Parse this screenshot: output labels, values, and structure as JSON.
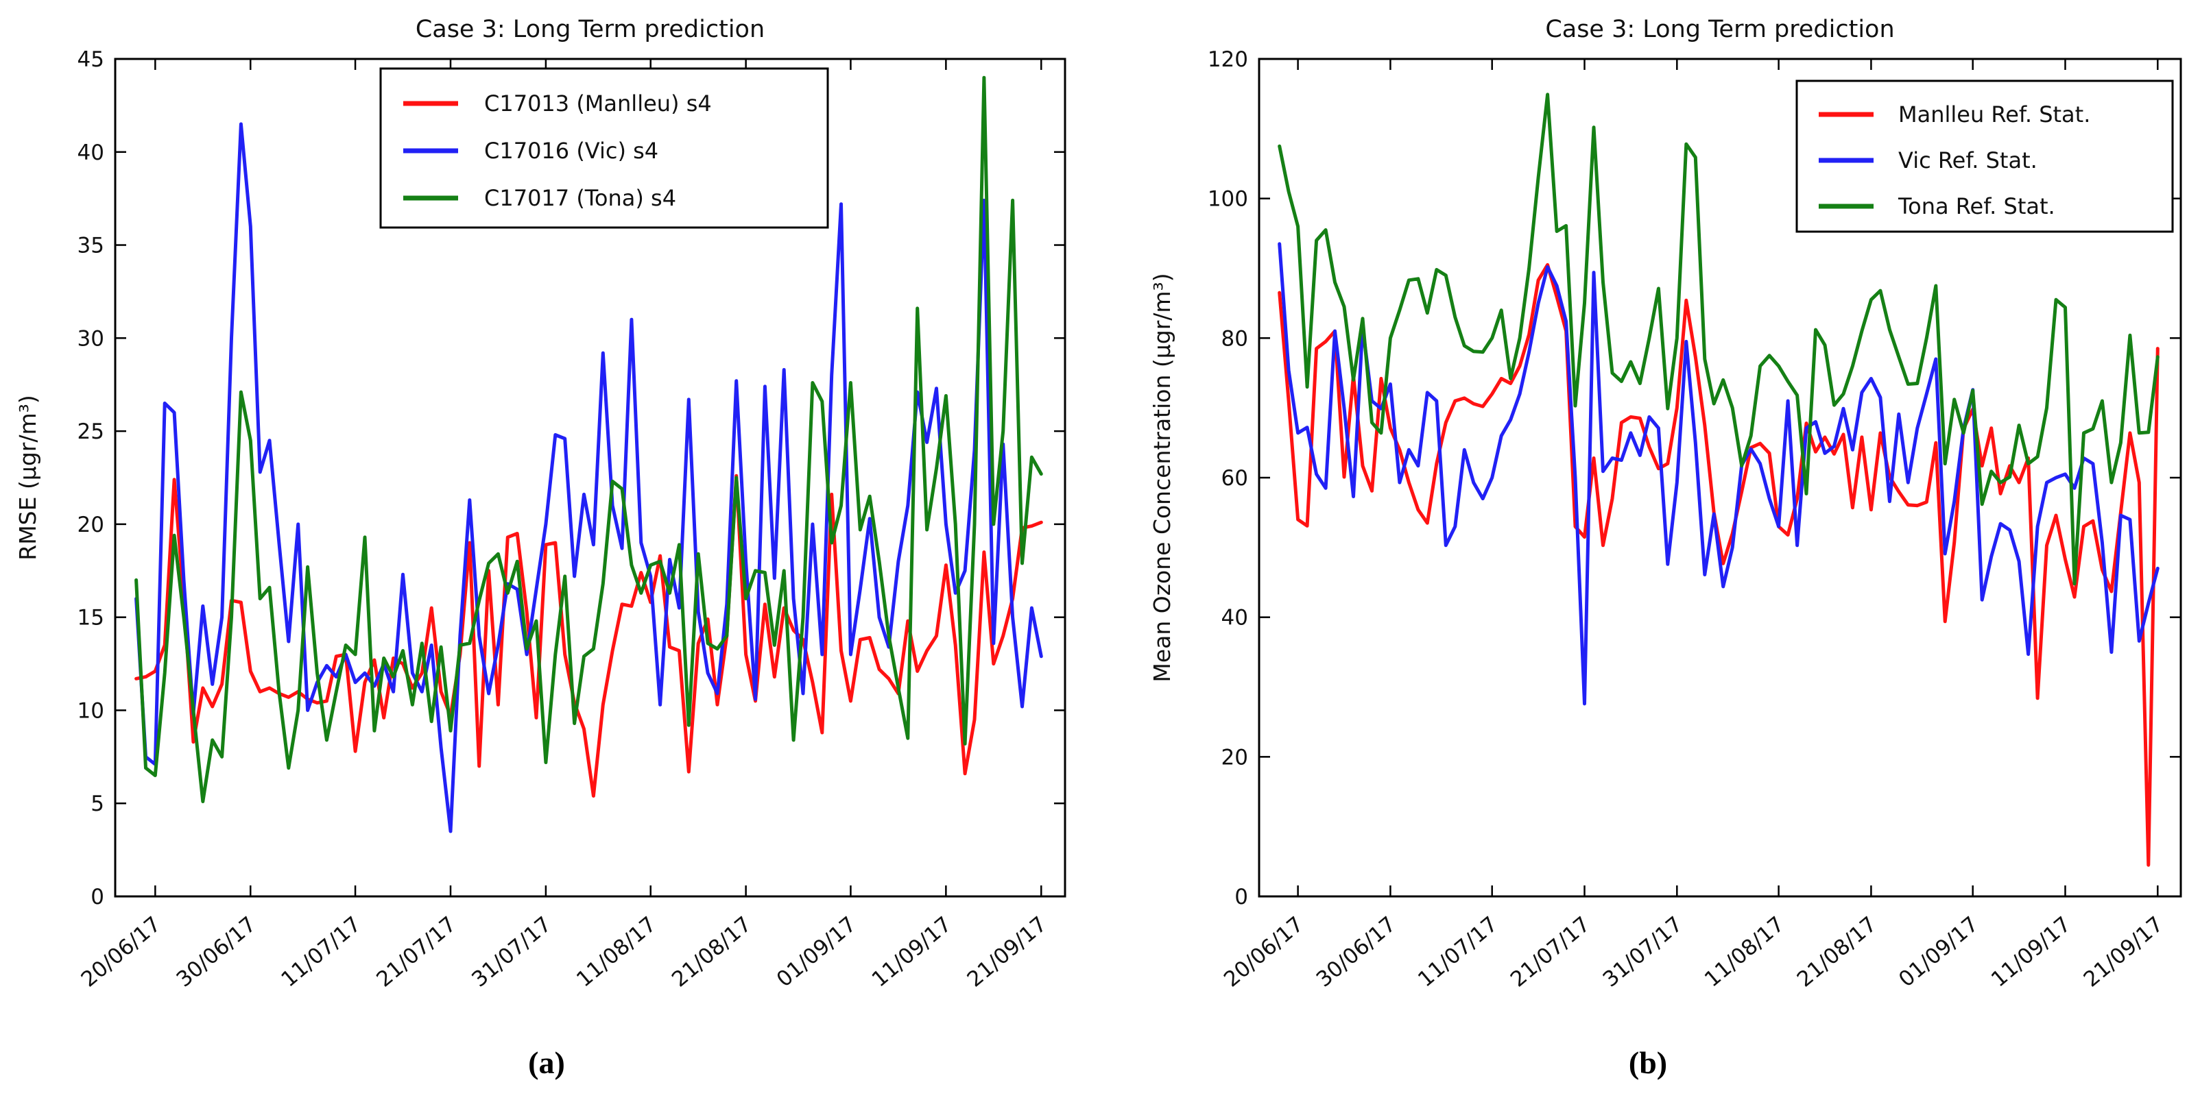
{
  "captions": {
    "a": "(a)",
    "b": "(b)"
  },
  "colors": {
    "red": "#ff1212",
    "blue": "#2121f5",
    "green": "#158015",
    "axis": "#000000",
    "text": "#111111"
  },
  "chart_data": [
    {
      "type": "line",
      "id": "left",
      "title": "Case 3: Long Term prediction",
      "ylabel": "RMSE (μgr/m³)",
      "ylim": [
        0,
        45
      ],
      "yticks": [
        0,
        5,
        10,
        15,
        20,
        25,
        30,
        35,
        40,
        45
      ],
      "x_tick_labels": [
        "20/06/17",
        "30/06/17",
        "11/07/17",
        "21/07/17",
        "31/07/17",
        "11/08/17",
        "21/08/17",
        "01/09/17",
        "11/09/17",
        "21/09/17"
      ],
      "x_tick_day": [
        2,
        12,
        23,
        33,
        43,
        54,
        64,
        75,
        85,
        95
      ],
      "x_domain": [
        -2.2,
        97.5
      ],
      "x_start_date": "18/06/17",
      "x_step": "1 day",
      "legend_position": "upper center-left",
      "grid": false,
      "series": [
        {
          "name": "C17013 (Manlleu) s4",
          "color_key": "red",
          "values": [
            11.7,
            11.8,
            12.1,
            13.5,
            22.4,
            16.0,
            8.3,
            11.2,
            10.2,
            11.4,
            15.9,
            15.8,
            12.1,
            11.0,
            11.2,
            10.9,
            10.7,
            11.0,
            10.6,
            10.4,
            10.5,
            12.9,
            13.0,
            7.8,
            11.5,
            12.7,
            9.6,
            12.8,
            12.5,
            11.2,
            12.0,
            15.5,
            11.0,
            9.7,
            13.0,
            19.0,
            7.0,
            17.5,
            10.3,
            19.3,
            19.5,
            15.3,
            9.6,
            18.9,
            19.0,
            13.0,
            10.4,
            9.0,
            5.4,
            10.3,
            13.2,
            15.7,
            15.6,
            17.4,
            15.8,
            18.3,
            13.4,
            13.2,
            6.7,
            13.6,
            14.9,
            10.3,
            14.0,
            22.6,
            13.0,
            10.5,
            15.7,
            11.8,
            15.5,
            14.3,
            13.8,
            11.5,
            8.8,
            21.6,
            13.2,
            10.5,
            13.8,
            13.9,
            12.2,
            11.7,
            10.9,
            14.8,
            12.1,
            13.2,
            14.0,
            17.8,
            13.5,
            6.6,
            9.5,
            18.5,
            12.5,
            14.0,
            16.0,
            19.8,
            19.9,
            20.1
          ]
        },
        {
          "name": "C17016 (Vic) s4",
          "color_key": "blue",
          "values": [
            16.0,
            7.5,
            7.1,
            26.5,
            26.0,
            17.0,
            9.8,
            15.6,
            11.4,
            15.0,
            30.0,
            41.5,
            36.0,
            22.8,
            24.5,
            19.0,
            13.7,
            20.0,
            10.0,
            11.5,
            12.4,
            11.8,
            13.0,
            11.5,
            12.0,
            11.3,
            12.5,
            11.0,
            17.3,
            12.0,
            11.0,
            13.5,
            8.0,
            3.5,
            14.0,
            21.3,
            14.0,
            10.9,
            13.5,
            16.8,
            16.5,
            13.0,
            16.5,
            20.0,
            24.8,
            24.6,
            17.2,
            21.6,
            18.9,
            29.2,
            21.0,
            18.7,
            31.0,
            19.0,
            17.2,
            10.3,
            18.1,
            15.5,
            26.7,
            15.3,
            12.0,
            10.9,
            15.7,
            27.7,
            18.0,
            10.6,
            27.4,
            17.1,
            28.3,
            16.0,
            10.9,
            20.0,
            13.0,
            28.0,
            37.2,
            13.0,
            16.5,
            20.3,
            15.0,
            13.4,
            18.0,
            21.0,
            27.1,
            24.4,
            27.3,
            20.0,
            16.3,
            17.5,
            24.0,
            37.4,
            13.6,
            24.3,
            15.0,
            10.2,
            15.5,
            12.9
          ]
        },
        {
          "name": "C17017 (Tona) s4",
          "color_key": "green",
          "values": [
            17.0,
            6.9,
            6.5,
            12.0,
            19.4,
            15.0,
            10.0,
            5.1,
            8.4,
            7.5,
            15.0,
            27.1,
            24.5,
            16.0,
            16.6,
            11.0,
            6.9,
            10.0,
            17.7,
            12.0,
            8.4,
            11.0,
            13.5,
            13.0,
            19.3,
            8.9,
            12.8,
            11.8,
            13.2,
            10.3,
            13.6,
            9.4,
            13.4,
            8.9,
            13.5,
            13.6,
            15.9,
            17.9,
            18.4,
            16.3,
            18.0,
            13.3,
            14.8,
            7.2,
            13.0,
            17.2,
            9.3,
            12.9,
            13.3,
            16.8,
            22.3,
            21.9,
            17.8,
            16.3,
            17.8,
            18.0,
            16.3,
            18.9,
            9.2,
            18.4,
            13.6,
            13.3,
            14.0,
            22.5,
            16.0,
            17.5,
            17.4,
            13.5,
            17.5,
            8.4,
            15.0,
            27.6,
            26.6,
            19.0,
            21.0,
            27.6,
            19.7,
            21.5,
            18.0,
            14.0,
            11.2,
            8.5,
            31.6,
            19.7,
            23.0,
            26.9,
            20.0,
            8.2,
            20.0,
            44.0,
            20.0,
            25.0,
            37.4,
            17.9,
            23.6,
            22.7
          ]
        }
      ]
    },
    {
      "type": "line",
      "id": "right",
      "title": "Case 3: Long Term prediction",
      "ylabel": "Mean Ozone Concentration (μgr/m³)",
      "ylim": [
        0,
        120
      ],
      "yticks": [
        0,
        20,
        40,
        60,
        80,
        100,
        120
      ],
      "x_tick_labels": [
        "20/06/17",
        "30/06/17",
        "11/07/17",
        "21/07/17",
        "31/07/17",
        "11/08/17",
        "21/08/17",
        "01/09/17",
        "11/09/17",
        "21/09/17"
      ],
      "x_tick_day": [
        2,
        12,
        23,
        33,
        43,
        54,
        64,
        75,
        85,
        95
      ],
      "x_domain": [
        -2.2,
        97.5
      ],
      "x_start_date": "18/06/17",
      "x_step": "1 day",
      "legend_position": "upper right",
      "grid": false,
      "series": [
        {
          "name": "Manlleu Ref. Stat.",
          "color_key": "red",
          "values": [
            86.5,
            71.0,
            54.0,
            53.1,
            78.5,
            79.5,
            81.0,
            60.1,
            74.6,
            61.7,
            58.1,
            74.2,
            67.1,
            64.0,
            59.3,
            55.4,
            53.5,
            62.0,
            67.9,
            71.0,
            71.4,
            70.6,
            70.2,
            72.0,
            74.2,
            73.5,
            76.0,
            80.5,
            88.3,
            90.5,
            85.9,
            81.0,
            53.0,
            51.5,
            62.8,
            50.3,
            57.0,
            67.9,
            68.7,
            68.5,
            64.4,
            61.3,
            62.0,
            70.0,
            85.4,
            77.3,
            67.5,
            55.0,
            47.7,
            52.0,
            58.0,
            64.3,
            64.9,
            63.5,
            53.0,
            51.8,
            57.0,
            67.8,
            63.7,
            65.8,
            63.4,
            66.2,
            55.7,
            65.8,
            55.4,
            66.4,
            60.1,
            58.0,
            56.1,
            56.0,
            56.5,
            65.0,
            39.4,
            50.7,
            67.0,
            69.8,
            61.7,
            67.1,
            57.7,
            61.7,
            59.3,
            62.8,
            28.4,
            50.3,
            54.6,
            48.3,
            42.9,
            53.0,
            53.8,
            46.8,
            43.7,
            55.0,
            66.4,
            59.3,
            4.5,
            78.5
          ]
        },
        {
          "name": "Vic Ref. Stat.",
          "color_key": "blue",
          "values": [
            93.5,
            75.4,
            66.4,
            67.2,
            60.5,
            58.5,
            81.0,
            70.0,
            57.3,
            81.6,
            71.0,
            69.9,
            73.4,
            59.3,
            64.0,
            61.7,
            72.2,
            71.0,
            50.3,
            53.0,
            64.0,
            59.3,
            57.0,
            60.0,
            66.0,
            68.3,
            72.0,
            78.0,
            85.0,
            90.2,
            87.5,
            82.4,
            60.0,
            27.6,
            89.4,
            60.9,
            62.8,
            62.5,
            66.4,
            63.2,
            68.7,
            67.1,
            47.6,
            59.3,
            79.5,
            65.0,
            46.1,
            54.8,
            44.4,
            50.0,
            61.8,
            64.1,
            62.0,
            57.0,
            53.0,
            71.0,
            50.3,
            67.1,
            68.0,
            63.5,
            64.5,
            69.9,
            64.0,
            72.2,
            74.2,
            71.5,
            56.6,
            69.1,
            59.3,
            67.1,
            72.0,
            77.0,
            49.1,
            56.6,
            67.0,
            72.6,
            42.5,
            48.7,
            53.4,
            52.5,
            48.0,
            34.7,
            53.0,
            59.3,
            60.0,
            60.5,
            58.5,
            62.8,
            62.0,
            50.7,
            35.0,
            54.6,
            54.0,
            36.6,
            42.0,
            47.0
          ]
        },
        {
          "name": "Tona Ref. Stat.",
          "color_key": "green",
          "values": [
            107.5,
            101.0,
            96.0,
            73.0,
            94.0,
            95.5,
            88.0,
            84.5,
            74.0,
            82.8,
            67.9,
            66.4,
            80.0,
            84.0,
            88.3,
            88.5,
            83.6,
            89.8,
            89.0,
            83.0,
            78.9,
            78.1,
            78.0,
            80.0,
            84.0,
            74.2,
            80.0,
            90.0,
            103.0,
            114.9,
            95.3,
            96.1,
            70.3,
            85.0,
            110.2,
            88.0,
            75.0,
            73.8,
            76.6,
            73.5,
            80.0,
            87.1,
            69.9,
            80.0,
            107.8,
            105.9,
            77.0,
            70.6,
            74.0,
            70.0,
            61.7,
            66.0,
            76.0,
            77.5,
            76.0,
            73.8,
            71.8,
            57.7,
            81.2,
            79.0,
            70.4,
            72.0,
            76.0,
            81.0,
            85.5,
            86.8,
            81.2,
            77.3,
            73.4,
            73.5,
            80.0,
            87.5,
            62.0,
            71.2,
            66.4,
            72.5,
            56.2,
            60.9,
            59.3,
            60.1,
            67.5,
            62.0,
            63.0,
            70.0,
            85.5,
            84.4,
            44.8,
            66.4,
            67.0,
            71.0,
            59.3,
            65.0,
            80.4,
            66.4,
            66.5,
            77.3
          ]
        }
      ]
    }
  ]
}
